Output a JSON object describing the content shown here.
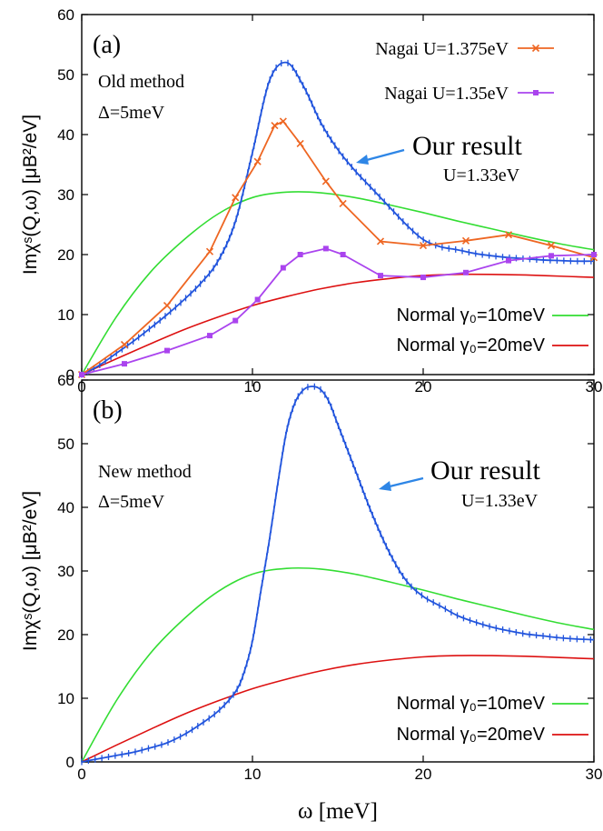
{
  "chart_data": [
    {
      "type": "line",
      "panel_label": "(a)",
      "annotations": {
        "method": "Old method",
        "delta": "Δ=5meV",
        "our_result": "Our result",
        "our_U": "U=1.33eV"
      },
      "xlabel": "ω [meV]",
      "ylabel": "Imχˢ(Q,ω) [μB²/eV]",
      "xlim": [
        0,
        30
      ],
      "ylim": [
        0,
        60
      ],
      "xticks": [
        "0",
        "10",
        "20",
        "30"
      ],
      "yticks": [
        "0",
        "10",
        "20",
        "30",
        "40",
        "50",
        "60"
      ],
      "series": [
        {
          "name": "Normal γ0=10meV",
          "legend_label": "Normal γ₀=10meV",
          "color": "#33dd33",
          "marker": "none",
          "x": [
            0,
            2,
            4,
            6,
            8,
            10,
            12,
            14,
            16,
            18,
            20,
            22,
            24,
            26,
            28,
            30
          ],
          "y": [
            0,
            9.5,
            17.0,
            22.5,
            26.8,
            29.5,
            30.4,
            30.3,
            29.5,
            28.3,
            27.0,
            25.6,
            24.3,
            23.0,
            21.8,
            20.8
          ]
        },
        {
          "name": "Normal γ0=20meV",
          "legend_label": "Normal γ₀=20meV",
          "color": "#dd1111",
          "marker": "none",
          "x": [
            0,
            2,
            4,
            6,
            8,
            10,
            12,
            14,
            16,
            18,
            20,
            22,
            24,
            26,
            28,
            30
          ],
          "y": [
            0,
            2.6,
            5.1,
            7.5,
            9.6,
            11.5,
            13.0,
            14.3,
            15.3,
            16.0,
            16.5,
            16.7,
            16.7,
            16.6,
            16.4,
            16.2
          ]
        },
        {
          "name": "Our result U=1.33eV",
          "legend_label": "",
          "color": "#2255dd",
          "marker": "tick",
          "x": [
            0,
            1,
            2,
            3,
            4,
            5,
            6,
            7,
            8,
            9,
            10,
            11,
            12,
            13,
            14,
            15,
            16,
            17,
            18,
            19,
            20,
            21,
            22,
            23,
            24,
            25,
            26,
            27,
            28,
            29,
            30
          ],
          "y": [
            0,
            1.5,
            3.5,
            5.5,
            7.7,
            10.0,
            12.5,
            15.3,
            19.0,
            25.5,
            37.0,
            49.0,
            52.0,
            48.0,
            42.0,
            37.5,
            34.0,
            31.0,
            28.0,
            25.0,
            22.5,
            21.3,
            20.8,
            20.2,
            19.8,
            19.5,
            19.3,
            19.1,
            19.0,
            18.9,
            18.9
          ]
        },
        {
          "name": "Nagai U=1.375eV",
          "legend_label": "Nagai U=1.375eV",
          "color": "#ee6622",
          "marker": "x",
          "x": [
            0,
            2.5,
            5,
            7.5,
            9,
            10.3,
            11.3,
            11.8,
            12.8,
            14.3,
            15.3,
            17.5,
            20,
            22.5,
            25,
            27.5,
            30
          ],
          "y": [
            0,
            5,
            11.5,
            20.5,
            29.5,
            35.5,
            41.5,
            42.2,
            38.5,
            32.2,
            28.5,
            22.2,
            21.5,
            22.3,
            23.3,
            21.5,
            19.5
          ]
        },
        {
          "name": "Nagai U=1.35eV",
          "legend_label": "Nagai U=1.35eV",
          "color": "#aa44ee",
          "marker": "square",
          "x": [
            0,
            2.5,
            5,
            7.5,
            9,
            10.3,
            11.8,
            12.8,
            14.3,
            15.3,
            17.5,
            20,
            22.5,
            25,
            27.5,
            30
          ],
          "y": [
            0,
            1.8,
            4,
            6.5,
            9,
            12.5,
            17.8,
            20,
            21,
            20,
            16.5,
            16.2,
            17,
            19,
            19.8,
            20
          ]
        }
      ]
    },
    {
      "type": "line",
      "panel_label": "(b)",
      "annotations": {
        "method": "New method",
        "delta": "Δ=5meV",
        "our_result": "Our result",
        "our_U": "U=1.33eV"
      },
      "xlabel": "ω [meV]",
      "ylabel": "Imχˢ(Q,ω) [μB²/eV]",
      "xlim": [
        0,
        30
      ],
      "ylim": [
        0,
        60
      ],
      "xticks": [
        "0",
        "10",
        "20",
        "30"
      ],
      "yticks": [
        "0",
        "10",
        "20",
        "30",
        "40",
        "50",
        "60"
      ],
      "series": [
        {
          "name": "Normal γ0=10meV",
          "legend_label": "Normal γ₀=10meV",
          "color": "#33dd33",
          "marker": "none",
          "x": [
            0,
            2,
            4,
            6,
            8,
            10,
            12,
            14,
            16,
            18,
            20,
            22,
            24,
            26,
            28,
            30
          ],
          "y": [
            0,
            9.5,
            17.0,
            22.5,
            26.8,
            29.5,
            30.4,
            30.3,
            29.5,
            28.3,
            27.0,
            25.6,
            24.3,
            23.0,
            21.8,
            20.8
          ]
        },
        {
          "name": "Normal γ0=20meV",
          "legend_label": "Normal γ₀=20meV",
          "color": "#dd1111",
          "marker": "none",
          "x": [
            0,
            2,
            4,
            6,
            8,
            10,
            12,
            14,
            16,
            18,
            20,
            22,
            24,
            26,
            28,
            30
          ],
          "y": [
            0,
            2.6,
            5.1,
            7.5,
            9.6,
            11.5,
            13.0,
            14.3,
            15.3,
            16.0,
            16.5,
            16.7,
            16.7,
            16.6,
            16.4,
            16.2
          ]
        },
        {
          "name": "Our result U=1.33eV",
          "legend_label": "",
          "color": "#2255dd",
          "marker": "tick",
          "x": [
            0,
            1,
            2,
            3,
            4,
            5,
            6,
            7,
            8,
            9,
            9.5,
            10,
            10.5,
            11,
            11.5,
            12,
            12.5,
            13,
            13.5,
            14,
            14.5,
            15,
            16,
            17,
            18,
            19,
            20,
            21,
            22,
            23,
            24,
            25,
            26,
            27,
            28,
            29,
            30
          ],
          "y": [
            0,
            0.5,
            1.0,
            1.5,
            2.2,
            3.0,
            4.3,
            6.0,
            8.0,
            11.0,
            14.0,
            19.0,
            27.0,
            35.0,
            44.0,
            52.0,
            56.5,
            58.5,
            59.0,
            58.5,
            56.5,
            53.0,
            46.0,
            39.0,
            33.0,
            28.5,
            26.0,
            24.5,
            23.0,
            22.0,
            21.2,
            20.6,
            20.1,
            19.8,
            19.5,
            19.3,
            19.2
          ]
        }
      ]
    }
  ]
}
